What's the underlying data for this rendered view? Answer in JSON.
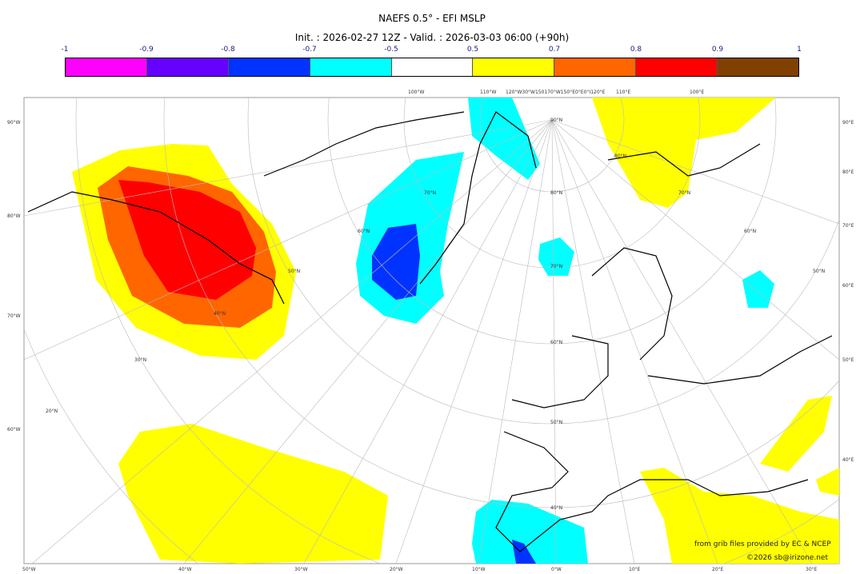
{
  "header": {
    "title": "NAEFS 0.5° - EFI MSLP",
    "subtitle": "Init. : 2026-02-27 12Z - Valid. : 2026-03-03 06:00 (+90h)"
  },
  "colorbar": {
    "ticks": [
      "-1",
      "-0.9",
      "-0.8",
      "-0.7",
      "-0.5",
      "0.5",
      "0.7",
      "0.8",
      "0.9",
      "1"
    ],
    "colors": [
      "#ff00ff",
      "#6600ff",
      "#0033ff",
      "#00ffff",
      "#ffffff",
      "#ffff00",
      "#ff6600",
      "#ff0000",
      "#804000"
    ]
  },
  "map": {
    "top_labels": [
      "100°W",
      "110°W",
      "120°W30°W150170°W150°E0°E0°I120°E",
      "110°E",
      "100°E"
    ],
    "bottom_labels": [
      "50°W",
      "40°W",
      "30°W",
      "20°W",
      "10°W",
      "0°W",
      "10°E",
      "20°E",
      "30°E"
    ],
    "left_labels": [
      "90°W",
      "80°W",
      "70°W",
      "60°W"
    ],
    "right_labels": [
      "90°E",
      "80°E",
      "70°E",
      "60°E",
      "50°E",
      "40°E"
    ],
    "lat_labels": [
      "90°N",
      "80°N",
      "70°N",
      "60°N",
      "50°N",
      "40°N",
      "30°N",
      "20°N",
      "70°N",
      "60°N",
      "50°N",
      "40°N",
      "80°N",
      "70°N",
      "60°N",
      "50°N"
    ]
  },
  "credits": {
    "source": "from grib files provided by EC & NCEP",
    "copyright": "©2026 sb@irizone.net"
  }
}
